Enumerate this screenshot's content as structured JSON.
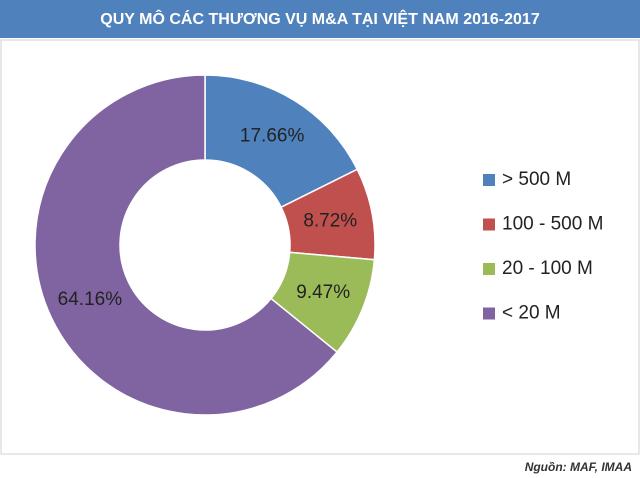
{
  "chart_data": {
    "type": "doughnut",
    "title": "QUY MÔ CÁC THƯƠNG VỤ M&A TẠI VIỆT NAM 2016-2017",
    "source": "Nguồn: MAF, IMAA",
    "series": [
      {
        "name": "> 500 M",
        "color": "#4f81bd"
      },
      {
        "name": "100 - 500 M",
        "color": "#c0504d"
      },
      {
        "name": "20 - 100 M",
        "color": "#9bbb59"
      },
      {
        "name": "< 20 M",
        "color": "#8064a2"
      }
    ],
    "values": [
      17.66,
      8.72,
      9.47,
      64.16
    ],
    "value_labels": [
      "17.66%",
      "8.72%",
      "9.47%",
      "64.16%"
    ],
    "legend": "right"
  }
}
